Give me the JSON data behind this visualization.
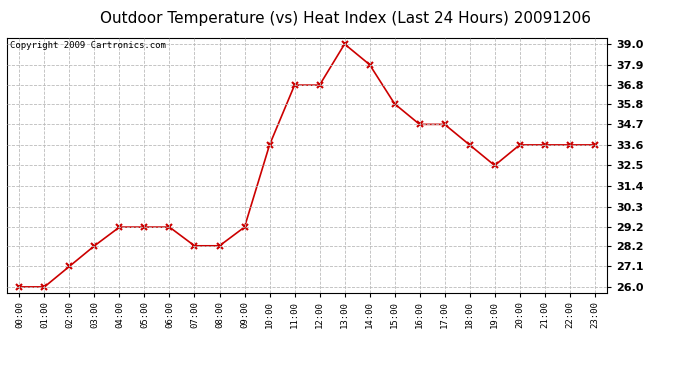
{
  "title": "Outdoor Temperature (vs) Heat Index (Last 24 Hours) 20091206",
  "copyright_text": "Copyright 2009 Cartronics.com",
  "x_labels": [
    "00:00",
    "01:00",
    "02:00",
    "03:00",
    "04:00",
    "05:00",
    "06:00",
    "07:00",
    "08:00",
    "09:00",
    "10:00",
    "11:00",
    "12:00",
    "13:00",
    "14:00",
    "15:00",
    "16:00",
    "17:00",
    "18:00",
    "19:00",
    "20:00",
    "21:00",
    "22:00",
    "23:00"
  ],
  "y_values": [
    26.0,
    26.0,
    27.1,
    28.2,
    29.2,
    29.2,
    29.2,
    28.2,
    28.2,
    29.2,
    33.6,
    36.8,
    36.8,
    39.0,
    37.9,
    35.8,
    34.7,
    34.7,
    33.6,
    32.5,
    33.6,
    33.6,
    33.6,
    33.6
  ],
  "y_ticks": [
    26.0,
    27.1,
    28.2,
    29.2,
    30.3,
    31.4,
    32.5,
    33.6,
    34.7,
    35.8,
    36.8,
    37.9,
    39.0
  ],
  "ylim": [
    25.7,
    39.35
  ],
  "line_color": "#cc0000",
  "marker": "x",
  "marker_color": "#cc0000",
  "background_color": "#ffffff",
  "plot_bg_color": "#ffffff",
  "grid_color": "#bbbbbb",
  "title_fontsize": 11,
  "copyright_fontsize": 6.5,
  "tick_fontsize": 8,
  "xtick_fontsize": 6.5
}
